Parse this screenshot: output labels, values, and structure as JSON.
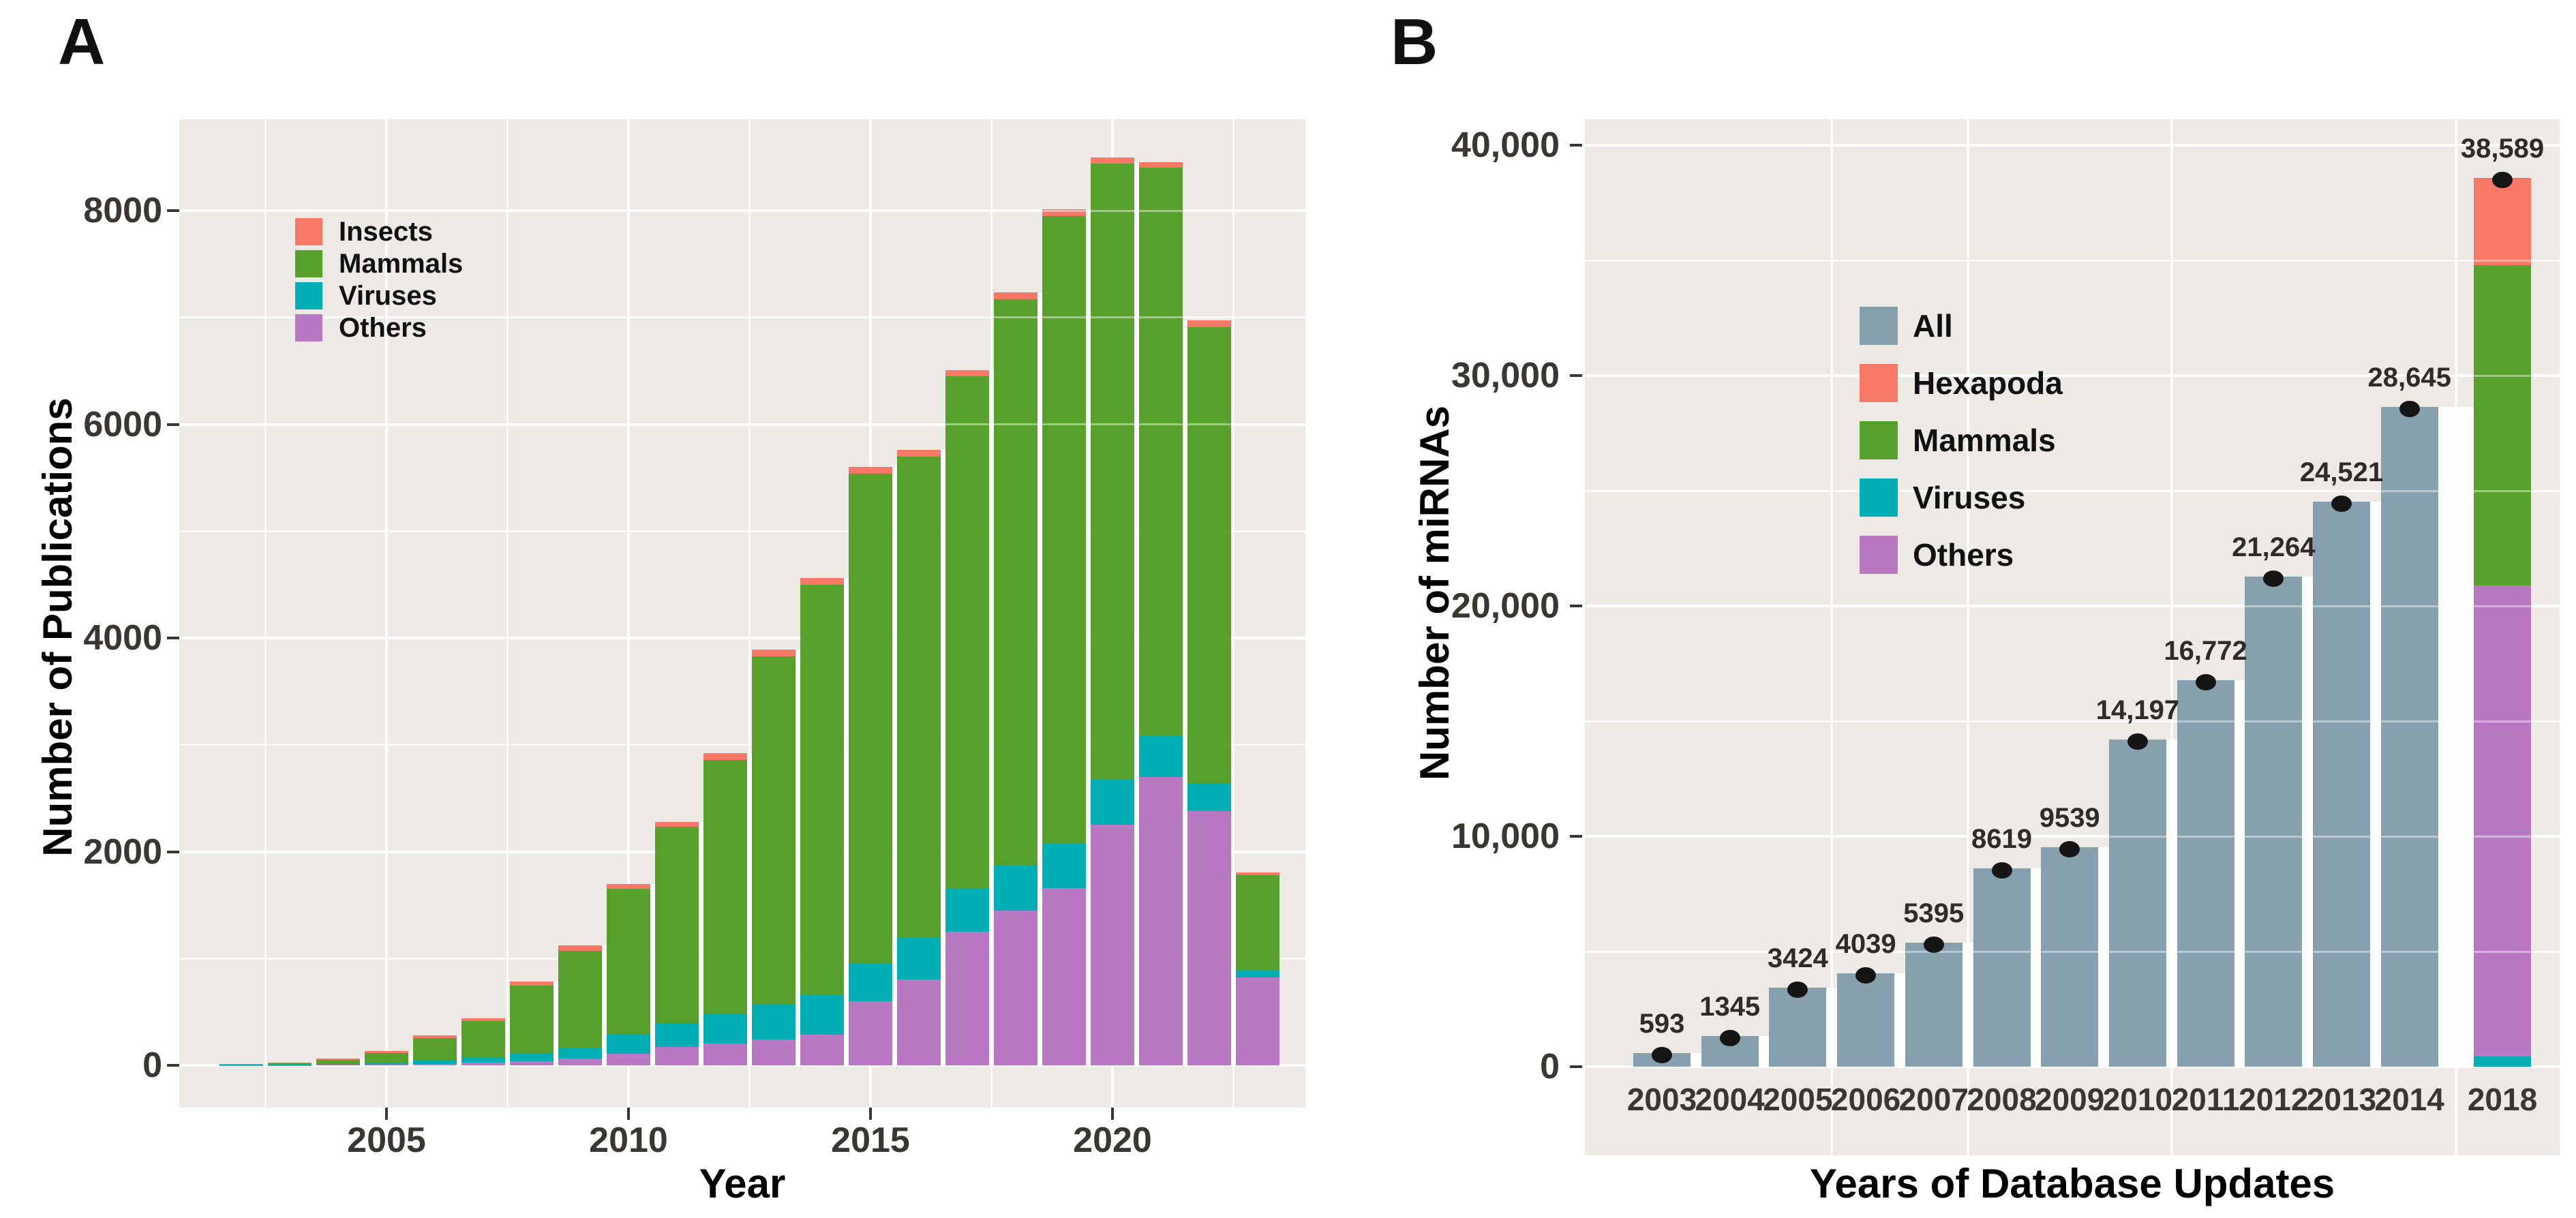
{
  "colors": {
    "panel_bg": "#EDEAE6",
    "grid": "#FFFFFF",
    "grid_overlay": "rgba(255,255,255,0.42)",
    "axis_text": "#3a3632",
    "title_text": "#000000",
    "dot": "#151515",
    "insects": "#F87868",
    "mammals": "#58A02C",
    "viruses": "#00AEB3",
    "others": "#B878C2",
    "all": "#87A0AE"
  },
  "panel_a": {
    "label": "A"
  },
  "panel_b": {
    "label": "B"
  },
  "chart_data": [
    {
      "id": "publications-by-year",
      "panel": "A",
      "type": "bar",
      "stacked": true,
      "xlabel": "Year",
      "ylabel": "Number of Publications",
      "x": [
        2002,
        2003,
        2004,
        2005,
        2006,
        2007,
        2008,
        2009,
        2010,
        2011,
        2012,
        2013,
        2014,
        2015,
        2016,
        2017,
        2018,
        2019,
        2020,
        2021,
        2022,
        2023
      ],
      "series": [
        {
          "name": "Others",
          "color_key": "others",
          "values": [
            2,
            3,
            5,
            8,
            15,
            24,
            40,
            62,
            110,
            170,
            205,
            240,
            285,
            600,
            805,
            1250,
            1450,
            1660,
            2250,
            2700,
            2380,
            820
          ]
        },
        {
          "name": "Viruses",
          "color_key": "viruses",
          "values": [
            2,
            3,
            8,
            16,
            34,
            44,
            72,
            100,
            185,
            225,
            280,
            330,
            370,
            360,
            385,
            400,
            420,
            420,
            430,
            380,
            260,
            70
          ]
        },
        {
          "name": "Mammals",
          "color_key": "mammals",
          "values": [
            8,
            16,
            40,
            92,
            208,
            345,
            635,
            910,
            1355,
            1835,
            2375,
            3260,
            3845,
            4580,
            4510,
            4800,
            5300,
            5870,
            5760,
            5320,
            4270,
            890
          ]
        },
        {
          "name": "Insects",
          "color_key": "insects",
          "values": [
            3,
            4,
            12,
            18,
            23,
            27,
            38,
            48,
            50,
            50,
            60,
            60,
            60,
            60,
            60,
            60,
            65,
            60,
            60,
            55,
            60,
            25
          ]
        }
      ],
      "ylim": [
        0,
        8855
      ],
      "yticks": [
        {
          "value": 0,
          "label": "0"
        },
        {
          "value": 2000,
          "label": "2000"
        },
        {
          "value": 4000,
          "label": "4000"
        },
        {
          "value": 6000,
          "label": "6000"
        },
        {
          "value": 8000,
          "label": "8000"
        }
      ],
      "yminor": [
        1000,
        3000,
        5000,
        7000
      ],
      "xticks": [
        {
          "value": 2005,
          "label": "2005"
        },
        {
          "value": 2010,
          "label": "2010"
        },
        {
          "value": 2015,
          "label": "2015"
        },
        {
          "value": 2020,
          "label": "2020"
        }
      ],
      "xminor": [
        2002.5,
        2007.5,
        2012.5,
        2017.5,
        2022.5
      ],
      "legend": [
        {
          "name": "Insects",
          "color_key": "insects"
        },
        {
          "name": "Mammals",
          "color_key": "mammals"
        },
        {
          "name": "Viruses",
          "color_key": "viruses"
        },
        {
          "name": "Others",
          "color_key": "others"
        }
      ],
      "legend_position": "inside-top-left",
      "grid": "on"
    },
    {
      "id": "mirnas-by-database-update",
      "panel": "B",
      "type": "bar",
      "stacked": false,
      "xlabel": "Years of Database Updates",
      "ylabel": "Number of miRNAs",
      "categories": [
        "2003",
        "2004",
        "2005",
        "2006",
        "2007",
        "2008",
        "2009",
        "2010",
        "2011",
        "2012",
        "2013",
        "2014",
        "2018"
      ],
      "values": [
        593,
        1345,
        3424,
        4039,
        5395,
        8619,
        9539,
        14197,
        16772,
        21264,
        24521,
        28645,
        38589
      ],
      "value_labels": [
        "593",
        "1345",
        "3424",
        "4039",
        "5395",
        "8619",
        "9539",
        "14,197",
        "16,772",
        "21,264",
        "24,521",
        "28,645",
        "38,589"
      ],
      "bar_color_key": "all",
      "point_marker": "black-dot-at-bar-top",
      "stacked_final_bar": {
        "category": "2018",
        "segments": [
          {
            "name": "Viruses",
            "color_key": "viruses",
            "value": 450
          },
          {
            "name": "Others",
            "color_key": "others",
            "value": 20450
          },
          {
            "name": "Mammals",
            "color_key": "mammals",
            "value": 13900
          },
          {
            "name": "Hexapoda",
            "color_key": "insects",
            "value": 3789
          }
        ]
      },
      "ylim": [
        0,
        41120
      ],
      "yticks": [
        {
          "value": 0,
          "label": "0"
        },
        {
          "value": 10000,
          "label": "10,000"
        },
        {
          "value": 20000,
          "label": "20,000"
        },
        {
          "value": 30000,
          "label": "30,000"
        },
        {
          "value": 40000,
          "label": "40,000"
        }
      ],
      "yminor": [
        5000,
        15000,
        25000,
        35000
      ],
      "legend": [
        {
          "name": "All",
          "color_key": "all"
        },
        {
          "name": "Hexapoda",
          "color_key": "insects"
        },
        {
          "name": "Mammals",
          "color_key": "mammals"
        },
        {
          "name": "Viruses",
          "color_key": "viruses"
        },
        {
          "name": "Others",
          "color_key": "others"
        }
      ],
      "legend_position": "inside-top-left",
      "grid": "on"
    }
  ]
}
